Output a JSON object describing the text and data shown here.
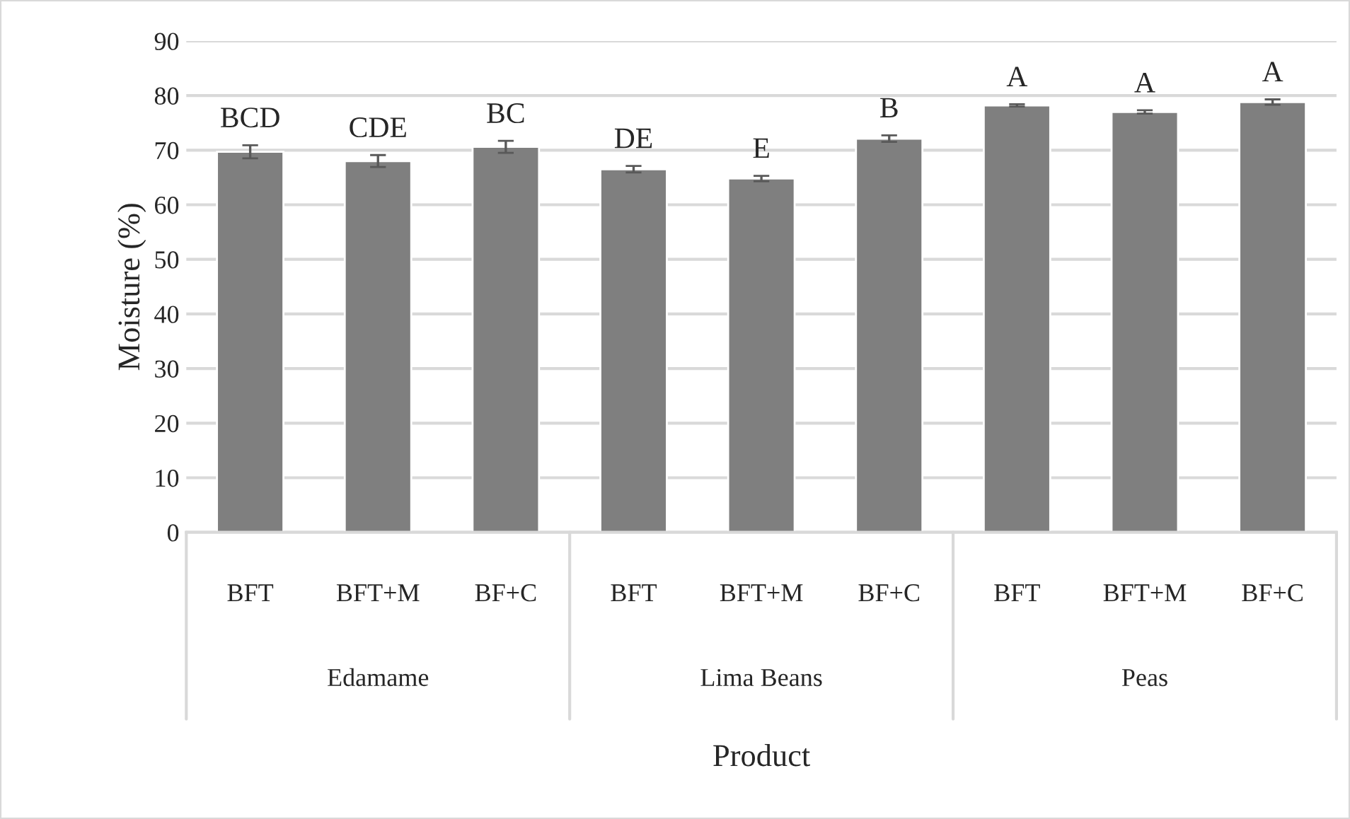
{
  "chart_data": {
    "type": "bar",
    "xlabel": "Product",
    "ylabel": "Moisture (%)",
    "categories": [
      "BFT",
      "BFT+M",
      "BF+C",
      "BFT",
      "BFT+M",
      "BF+C",
      "BFT",
      "BFT+M",
      "BF+C"
    ],
    "values": [
      69.7,
      68.0,
      70.6,
      66.5,
      64.8,
      72.1,
      78.2,
      77.0,
      78.8
    ],
    "errors": [
      1.2,
      1.1,
      1.1,
      0.6,
      0.5,
      0.6,
      0.2,
      0.3,
      0.5
    ],
    "value_labels": [
      "BCD",
      "CDE",
      "BC",
      "DE",
      "E",
      "B",
      "A",
      "A",
      "A"
    ],
    "color": "#7f7f7f",
    "annotations": [
      "Edamame",
      "Lima Beans",
      "Peas"
    ],
    "ylim": [
      0,
      90
    ],
    "yticks": [
      0,
      10,
      20,
      30,
      40,
      50,
      60,
      70,
      80,
      90
    ],
    "grid": "y"
  }
}
